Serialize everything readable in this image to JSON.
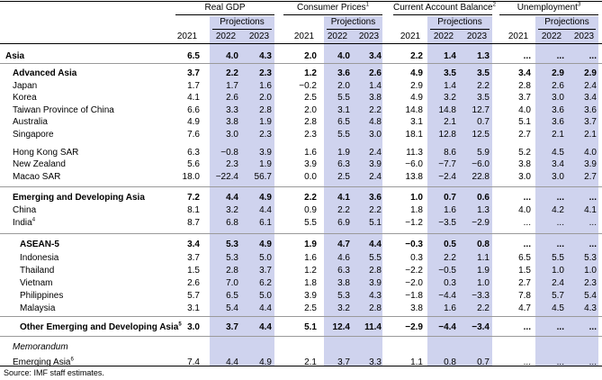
{
  "groups": [
    {
      "label": "Real GDP",
      "sup": ""
    },
    {
      "label": "Consumer Prices",
      "sup": "1"
    },
    {
      "label": "Current Account Balance",
      "sup": "2"
    },
    {
      "label": "Unemployment",
      "sup": "3"
    }
  ],
  "projections_label": "Projections",
  "years": [
    "2021",
    "2022",
    "2023"
  ],
  "rows": [
    {
      "label": "Asia",
      "sup": "",
      "style": "bold",
      "values": [
        "6.5",
        "4.0",
        "4.3",
        "2.0",
        "4.0",
        "3.4",
        "2.2",
        "1.4",
        "1.3",
        "...",
        "...",
        "..."
      ]
    },
    {
      "label": "Advanced Asia",
      "sup": "",
      "style": "bold-indent",
      "values": [
        "3.7",
        "2.2",
        "2.3",
        "1.2",
        "3.6",
        "2.6",
        "4.9",
        "3.5",
        "3.5",
        "3.4",
        "2.9",
        "2.9"
      ]
    },
    {
      "label": "Japan",
      "sup": "",
      "style": "indent",
      "values": [
        "1.7",
        "1.7",
        "1.6",
        "−0.2",
        "2.0",
        "1.4",
        "2.9",
        "1.4",
        "2.2",
        "2.8",
        "2.6",
        "2.4"
      ]
    },
    {
      "label": "Korea",
      "sup": "",
      "style": "indent",
      "values": [
        "4.1",
        "2.6",
        "2.0",
        "2.5",
        "5.5",
        "3.8",
        "4.9",
        "3.2",
        "3.5",
        "3.7",
        "3.0",
        "3.4"
      ]
    },
    {
      "label": "Taiwan Province of China",
      "sup": "",
      "style": "indent",
      "values": [
        "6.6",
        "3.3",
        "2.8",
        "2.0",
        "3.1",
        "2.2",
        "14.8",
        "14.8",
        "12.7",
        "4.0",
        "3.6",
        "3.6"
      ]
    },
    {
      "label": "Australia",
      "sup": "",
      "style": "indent",
      "values": [
        "4.9",
        "3.8",
        "1.9",
        "2.8",
        "6.5",
        "4.8",
        "3.1",
        "2.1",
        "0.7",
        "5.1",
        "3.6",
        "3.7"
      ]
    },
    {
      "label": "Singapore",
      "sup": "",
      "style": "indent",
      "values": [
        "7.6",
        "3.0",
        "2.3",
        "2.3",
        "5.5",
        "3.0",
        "18.1",
        "12.8",
        "12.5",
        "2.7",
        "2.1",
        "2.1"
      ]
    },
    {
      "label": "Hong Kong SAR",
      "sup": "",
      "style": "indent",
      "values": [
        "6.3",
        "−0.8",
        "3.9",
        "1.6",
        "1.9",
        "2.4",
        "11.3",
        "8.6",
        "5.9",
        "5.2",
        "4.5",
        "4.0"
      ]
    },
    {
      "label": "New Zealand",
      "sup": "",
      "style": "indent",
      "values": [
        "5.6",
        "2.3",
        "1.9",
        "3.9",
        "6.3",
        "3.9",
        "−6.0",
        "−7.7",
        "−6.0",
        "3.8",
        "3.4",
        "3.9"
      ]
    },
    {
      "label": "Macao SAR",
      "sup": "",
      "style": "indent",
      "values": [
        "18.0",
        "−22.4",
        "56.7",
        "0.0",
        "2.5",
        "2.4",
        "13.8",
        "−2.4",
        "22.8",
        "3.0",
        "3.0",
        "2.7"
      ]
    },
    {
      "label": "Emerging and Developing Asia",
      "sup": "",
      "style": "bold-indent",
      "values": [
        "7.2",
        "4.4",
        "4.9",
        "2.2",
        "4.1",
        "3.6",
        "1.0",
        "0.7",
        "0.6",
        "...",
        "...",
        "..."
      ]
    },
    {
      "label": "China",
      "sup": "",
      "style": "indent",
      "values": [
        "8.1",
        "3.2",
        "4.4",
        "0.9",
        "2.2",
        "2.2",
        "1.8",
        "1.6",
        "1.3",
        "4.0",
        "4.2",
        "4.1"
      ]
    },
    {
      "label": "India",
      "sup": "4",
      "style": "indent",
      "values": [
        "8.7",
        "6.8",
        "6.1",
        "5.5",
        "6.9",
        "5.1",
        "−1.2",
        "−3.5",
        "−2.9",
        "...",
        "...",
        "..."
      ]
    },
    {
      "label": "ASEAN-5",
      "sup": "",
      "style": "bold-indent2",
      "values": [
        "3.4",
        "5.3",
        "4.9",
        "1.9",
        "4.7",
        "4.4",
        "−0.3",
        "0.5",
        "0.8",
        "...",
        "...",
        "..."
      ]
    },
    {
      "label": "Indonesia",
      "sup": "",
      "style": "indent2",
      "values": [
        "3.7",
        "5.3",
        "5.0",
        "1.6",
        "4.6",
        "5.5",
        "0.3",
        "2.2",
        "1.1",
        "6.5",
        "5.5",
        "5.3"
      ]
    },
    {
      "label": "Thailand",
      "sup": "",
      "style": "indent2",
      "values": [
        "1.5",
        "2.8",
        "3.7",
        "1.2",
        "6.3",
        "2.8",
        "−2.2",
        "−0.5",
        "1.9",
        "1.5",
        "1.0",
        "1.0"
      ]
    },
    {
      "label": "Vietnam",
      "sup": "",
      "style": "indent2",
      "values": [
        "2.6",
        "7.0",
        "6.2",
        "1.8",
        "3.8",
        "3.9",
        "−2.0",
        "0.3",
        "1.0",
        "2.7",
        "2.4",
        "2.3"
      ]
    },
    {
      "label": "Philippines",
      "sup": "",
      "style": "indent2",
      "values": [
        "5.7",
        "6.5",
        "5.0",
        "3.9",
        "5.3",
        "4.3",
        "−1.8",
        "−4.4",
        "−3.3",
        "7.8",
        "5.7",
        "5.4"
      ]
    },
    {
      "label": "Malaysia",
      "sup": "",
      "style": "indent2",
      "values": [
        "3.1",
        "5.4",
        "4.4",
        "2.5",
        "3.2",
        "2.8",
        "3.8",
        "1.6",
        "2.2",
        "4.7",
        "4.5",
        "4.3"
      ]
    },
    {
      "label": "Other Emerging and Developing Asia",
      "sup": "5",
      "style": "bold-indent2",
      "values": [
        "3.0",
        "3.7",
        "4.4",
        "5.1",
        "12.4",
        "11.4",
        "−2.9",
        "−4.4",
        "−3.4",
        "...",
        "...",
        "..."
      ]
    },
    {
      "label": "Memorandum",
      "sup": "",
      "style": "italic-indent",
      "values": []
    },
    {
      "label": "Emerging Asia",
      "sup": "6",
      "style": "indent",
      "values": [
        "7.4",
        "4.4",
        "4.9",
        "2.1",
        "3.7",
        "3.3",
        "1.1",
        "0.8",
        "0.7",
        "...",
        "...",
        "..."
      ]
    }
  ],
  "source": "Source: IMF staff estimates.",
  "colors": {
    "projection_band": "#cfd3ee",
    "rule": "#000000"
  }
}
